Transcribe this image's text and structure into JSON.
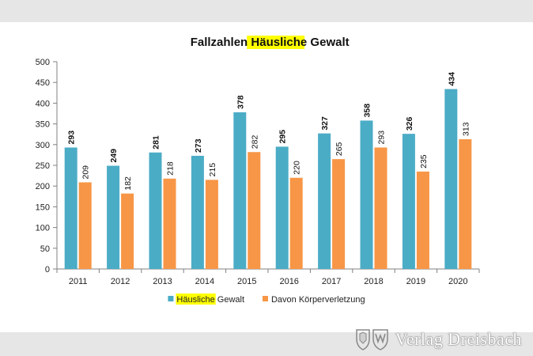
{
  "chart_data": {
    "type": "bar",
    "title_parts": [
      "Fallzahlen ",
      "Häusliche",
      " Gewalt"
    ],
    "title_highlight_index": 1,
    "categories": [
      "2011",
      "2012",
      "2013",
      "2014",
      "2015",
      "2016",
      "2017",
      "2018",
      "2019",
      "2020"
    ],
    "series": [
      {
        "name_parts": [
          "Häusliche",
          " Gewalt"
        ],
        "values": [
          293,
          249,
          281,
          273,
          378,
          295,
          327,
          358,
          326,
          434
        ],
        "color": "#4bacc6",
        "label_bold": true
      },
      {
        "name_parts": [
          "Davon Körperverletzung"
        ],
        "values": [
          209,
          182,
          218,
          215,
          282,
          220,
          265,
          293,
          235,
          313
        ],
        "color": "#f79646",
        "label_bold": false
      }
    ],
    "ylim": [
      0,
      500
    ],
    "yticks": [
      0,
      50,
      100,
      150,
      200,
      250,
      300,
      350,
      400,
      450,
      500
    ],
    "legend_position": "bottom",
    "highlight_color": "#ffff00",
    "grid": false
  },
  "watermark": {
    "text": "Verlag Dreisbach",
    "logo": "coat-of-arms-icon"
  }
}
